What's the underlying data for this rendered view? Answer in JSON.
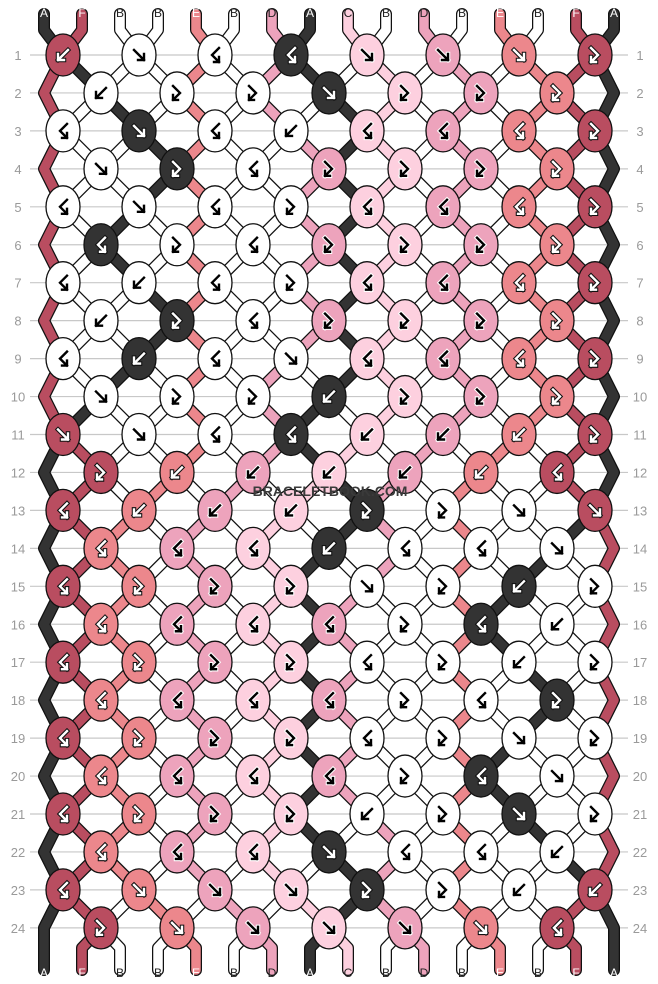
{
  "watermark": "BRACELETBOOK.COM",
  "strings_top": [
    "A",
    "F",
    "B",
    "B",
    "E",
    "B",
    "D",
    "A",
    "C",
    "B",
    "D",
    "B",
    "E",
    "B",
    "F",
    "A"
  ],
  "strings_bottom": [
    "A",
    "F",
    "B",
    "B",
    "E",
    "B",
    "D",
    "A",
    "C",
    "B",
    "D",
    "B",
    "E",
    "B",
    "F",
    "A"
  ],
  "colors": {
    "A": "#333333",
    "B": "#ffffff",
    "C": "#fdd0df",
    "D": "#eda3bc",
    "E": "#ec878c",
    "F": "#b94d60"
  },
  "knot_legend": {
    "f": "forward",
    "b": "backward",
    "fb": "forward-backward",
    "bf": "backward-forward"
  },
  "rows": [
    [
      "b",
      "f",
      "bf",
      "bf",
      "f",
      "f",
      "f",
      "fb"
    ],
    [
      "b",
      "fb",
      "fb",
      "f",
      "fb",
      "fb",
      "fb"
    ],
    [
      "bf",
      "f",
      "bf",
      "b",
      "bf",
      "bf",
      "bf",
      "fb"
    ],
    [
      "f",
      "fb",
      "bf",
      "fb",
      "fb",
      "fb",
      "fb"
    ],
    [
      "bf",
      "f",
      "bf",
      "fb",
      "bf",
      "bf",
      "bf",
      "fb"
    ],
    [
      "bf",
      "fb",
      "bf",
      "fb",
      "fb",
      "fb",
      "fb"
    ],
    [
      "bf",
      "b",
      "bf",
      "fb",
      "bf",
      "bf",
      "bf",
      "fb"
    ],
    [
      "b",
      "fb",
      "bf",
      "fb",
      "fb",
      "fb",
      "fb"
    ],
    [
      "bf",
      "b",
      "bf",
      "f",
      "bf",
      "bf",
      "bf",
      "fb"
    ],
    [
      "f",
      "fb",
      "fb",
      "b",
      "fb",
      "fb",
      "fb"
    ],
    [
      "f",
      "f",
      "bf",
      "bf",
      "b",
      "b",
      "b",
      "fb"
    ],
    [
      "fb",
      "b",
      "b",
      "b",
      "b",
      "b",
      "bf"
    ],
    [
      "bf",
      "b",
      "b",
      "b",
      "fb",
      "fb",
      "f",
      "f"
    ],
    [
      "bf",
      "bf",
      "bf",
      "b",
      "bf",
      "bf",
      "f"
    ],
    [
      "bf",
      "fb",
      "fb",
      "fb",
      "f",
      "fb",
      "b",
      "fb"
    ],
    [
      "bf",
      "bf",
      "bf",
      "bf",
      "fb",
      "bf",
      "b"
    ],
    [
      "bf",
      "fb",
      "fb",
      "fb",
      "bf",
      "fb",
      "b",
      "fb"
    ],
    [
      "bf",
      "bf",
      "bf",
      "bf",
      "fb",
      "bf",
      "fb"
    ],
    [
      "bf",
      "fb",
      "fb",
      "fb",
      "bf",
      "fb",
      "f",
      "fb"
    ],
    [
      "bf",
      "bf",
      "bf",
      "bf",
      "fb",
      "bf",
      "f"
    ],
    [
      "bf",
      "fb",
      "fb",
      "fb",
      "b",
      "fb",
      "f",
      "fb"
    ],
    [
      "bf",
      "bf",
      "bf",
      "f",
      "bf",
      "bf",
      "b"
    ],
    [
      "bf",
      "f",
      "f",
      "f",
      "fb",
      "fb",
      "b",
      "b"
    ],
    [
      "fb",
      "f",
      "f",
      "f",
      "f",
      "f",
      "bf"
    ]
  ],
  "row_numbers": [
    "1",
    "2",
    "3",
    "4",
    "5",
    "6",
    "7",
    "8",
    "9",
    "10",
    "11",
    "12",
    "13",
    "14",
    "15",
    "16",
    "17",
    "18",
    "19",
    "20",
    "21",
    "22",
    "23",
    "24"
  ]
}
